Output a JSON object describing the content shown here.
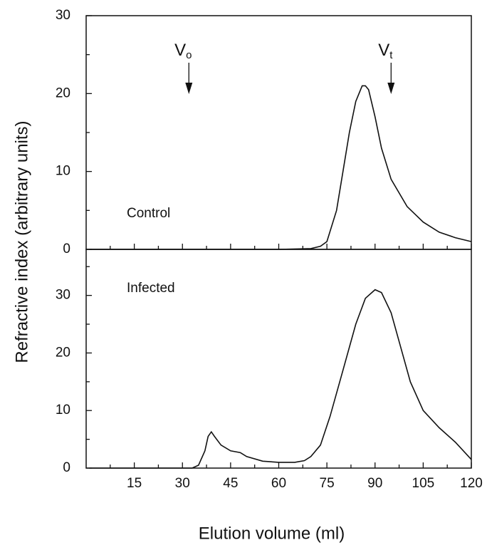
{
  "chart_data": [
    {
      "type": "line",
      "ylabel": "Refractive index (arbitrary units)",
      "panel_label": "Control",
      "xlim": [
        0,
        120
      ],
      "ylim": [
        0,
        30
      ],
      "yticks": [
        0,
        10,
        20,
        30
      ],
      "annotations": [
        {
          "text": "V",
          "subscript": "o",
          "x": 32
        },
        {
          "text": "V",
          "subscript": "t",
          "x": 95
        }
      ],
      "x": [
        1,
        60,
        70,
        73,
        75,
        78,
        80,
        82,
        84,
        86,
        87,
        88,
        90,
        92,
        95,
        100,
        105,
        110,
        115,
        120
      ],
      "values": [
        0,
        0,
        0.1,
        0.4,
        1,
        5,
        10,
        15,
        19,
        21,
        21,
        20.5,
        17,
        13,
        9,
        5.5,
        3.5,
        2.2,
        1.5,
        1
      ]
    },
    {
      "type": "line",
      "xlabel": "Elution volume (ml)",
      "panel_label": "Infected",
      "xlim": [
        0,
        120
      ],
      "ylim": [
        0,
        38
      ],
      "yticks": [
        0,
        10,
        20,
        30
      ],
      "xticks": [
        15,
        30,
        45,
        60,
        75,
        90,
        105,
        120
      ],
      "x": [
        1,
        33,
        35,
        37,
        38,
        39,
        40,
        42,
        45,
        48,
        50,
        55,
        60,
        65,
        68,
        70,
        73,
        76,
        80,
        84,
        87,
        90,
        92,
        95,
        98,
        101,
        105,
        110,
        115,
        120
      ],
      "values": [
        0,
        0,
        0.5,
        3,
        5.5,
        6.3,
        5.5,
        4,
        3,
        2.7,
        2,
        1.2,
        1,
        1,
        1.3,
        2,
        4,
        9,
        17,
        25,
        29.5,
        31,
        30.5,
        27,
        21,
        15,
        10,
        7,
        4.5,
        1.5
      ]
    }
  ]
}
